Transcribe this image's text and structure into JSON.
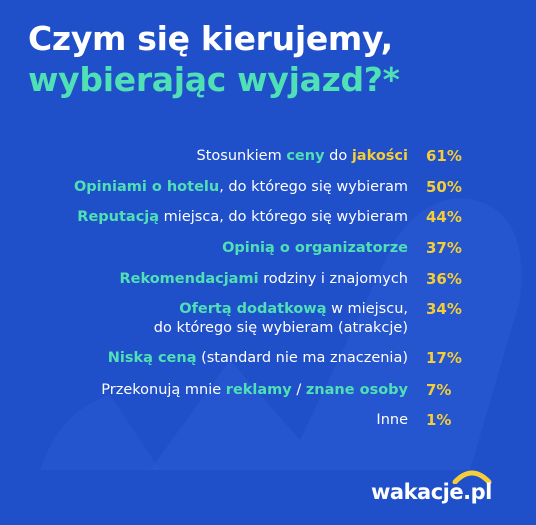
{
  "title": {
    "line1": "Czym się kierujemy,",
    "line2": "wybierając wyjazd?*"
  },
  "colors": {
    "background": "#1f4fc9",
    "accent_green": "#4fe0b5",
    "accent_yellow": "#f3cd3a",
    "text": "#ffffff"
  },
  "chart_data": {
    "type": "table",
    "unit": "%",
    "rows": [
      {
        "label_parts": [
          "Stosunkiem ",
          "ceny",
          " do ",
          "jakości"
        ],
        "value": 61,
        "display": "61%"
      },
      {
        "label_parts": [
          "Opiniami o hotelu",
          ", do którego się wybieram"
        ],
        "value": 50,
        "display": "50%"
      },
      {
        "label_parts": [
          "Reputacją",
          " miejsca, do którego się wybieram"
        ],
        "value": 44,
        "display": "44%"
      },
      {
        "label_parts": [
          "Opinią o organizatorze"
        ],
        "value": 37,
        "display": "37%"
      },
      {
        "label_parts": [
          "Rekomendacjami",
          " rodziny i znajomych"
        ],
        "value": 36,
        "display": "36%"
      },
      {
        "label_parts": [
          "Ofertą dodatkową",
          " w miejscu,",
          "do którego się wybieram (atrakcje)"
        ],
        "value": 34,
        "display": "34%"
      },
      {
        "label_parts": [
          "Niską ceną",
          " (standard nie ma znaczenia)"
        ],
        "value": 17,
        "display": "17%"
      },
      {
        "label_parts": [
          "Przekonują mnie ",
          "reklamy",
          " / ",
          "znane osoby"
        ],
        "value": 7,
        "display": "7%"
      },
      {
        "label_parts": [
          "Inne"
        ],
        "value": 1,
        "display": "1%"
      }
    ]
  },
  "logo": {
    "text": "wakacje.pl",
    "icon": "sun-arc-icon"
  }
}
